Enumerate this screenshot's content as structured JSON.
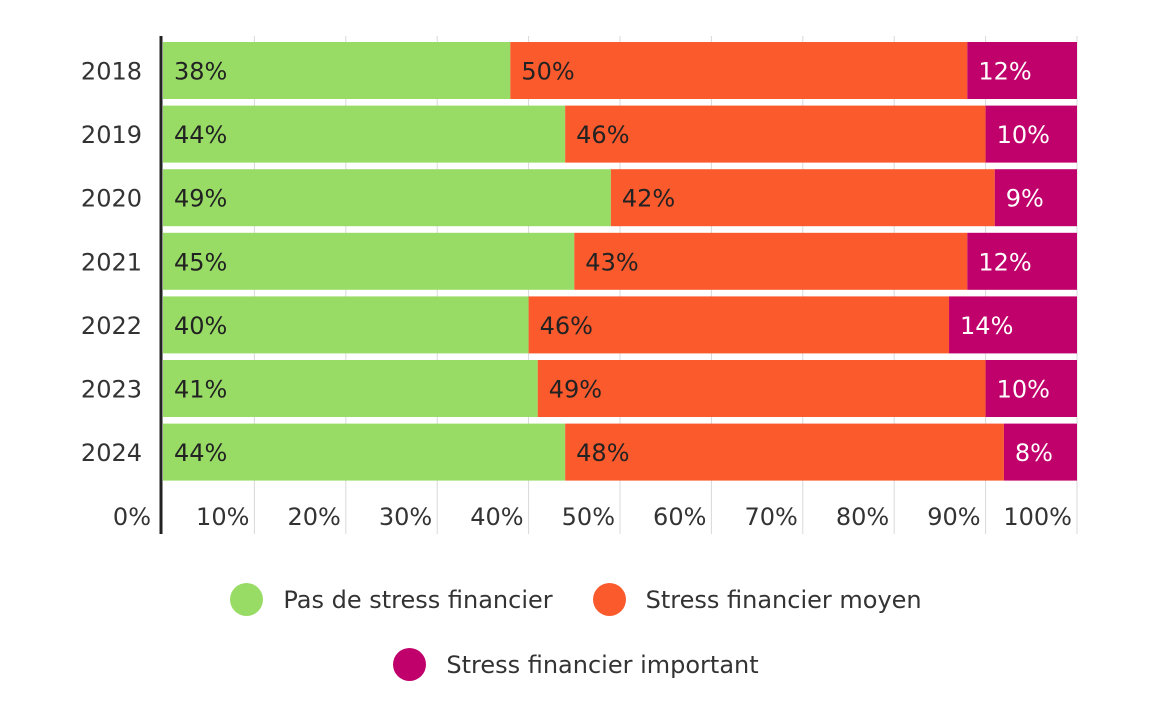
{
  "chart_data": {
    "type": "bar",
    "orientation": "horizontal",
    "stacked": true,
    "categories": [
      "2018",
      "2019",
      "2020",
      "2021",
      "2022",
      "2023",
      "2024"
    ],
    "series": [
      {
        "name": "Pas de stress financier",
        "values": [
          38,
          44,
          49,
          45,
          40,
          41,
          44
        ],
        "labels": [
          "38%",
          "44%",
          "49%",
          "45%",
          "40%",
          "41%",
          "44%"
        ],
        "color": "#98dc66",
        "label_color": "#222222"
      },
      {
        "name": "Stress financier moyen",
        "values": [
          50,
          46,
          42,
          43,
          46,
          49,
          48
        ],
        "labels": [
          "50%",
          "46%",
          "42%",
          "43%",
          "46%",
          "49%",
          "48%"
        ],
        "color": "#fb5a2d",
        "label_color": "#222222"
      },
      {
        "name": "Stress financier important",
        "values": [
          12,
          10,
          9,
          12,
          14,
          10,
          8
        ],
        "labels": [
          "12%",
          "10%",
          "9%",
          "12%",
          "14%",
          "10%",
          "8%"
        ],
        "color": "#c0006b",
        "label_color": "#ffffff"
      }
    ],
    "x_ticks": [
      "0%",
      "10%",
      "20%",
      "30%",
      "40%",
      "50%",
      "60%",
      "70%",
      "80%",
      "90%",
      "100%"
    ],
    "xlim": [
      0,
      100
    ],
    "grid": "vertical",
    "legend_position": "bottom"
  }
}
